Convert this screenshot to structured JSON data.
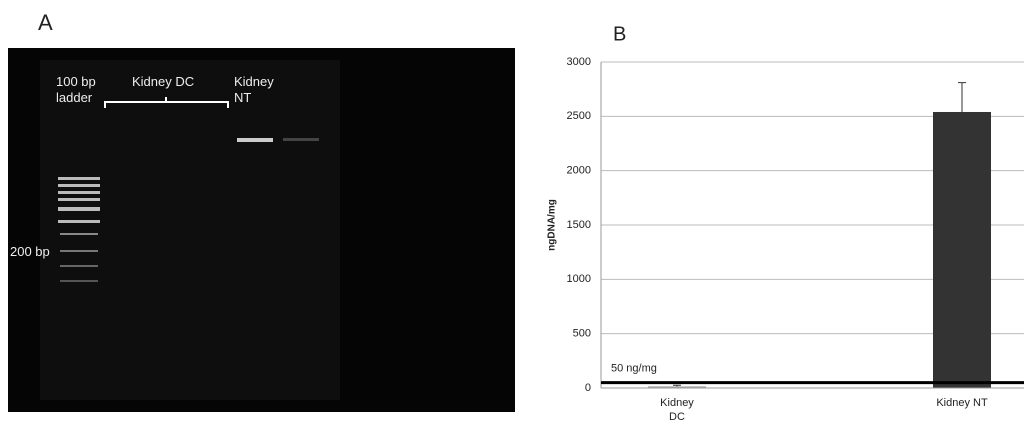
{
  "panel_a": {
    "label": "A",
    "lane_labels": [
      "100 bp ladder",
      "Kidney DC",
      "Kidney NT"
    ],
    "marker_label": "200 bp"
  },
  "chart_data": {
    "type": "bar",
    "panel_label": "B",
    "y_label": "ngDNA/mg",
    "categories": [
      "Kidney DC",
      "Kidney NT"
    ],
    "series": [
      {
        "values": [
          15,
          2540
        ],
        "errors": [
          10,
          270
        ],
        "colors": [
          "#a6a6a6",
          "#333333"
        ]
      }
    ],
    "ylim": [
      0,
      3000
    ],
    "yticks": [
      0,
      500,
      1000,
      1500,
      2000,
      2500,
      3000
    ],
    "grid": true,
    "reference_lines": [
      {
        "value": 50,
        "label": "50 ng/mg"
      }
    ]
  }
}
